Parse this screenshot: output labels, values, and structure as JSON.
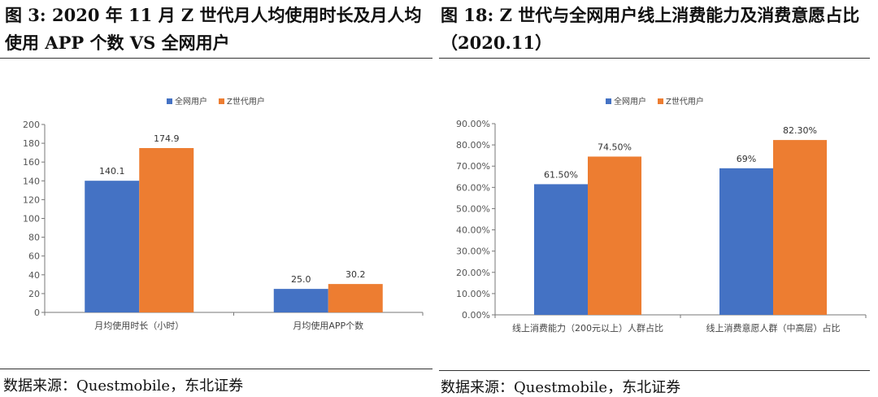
{
  "left": {
    "title": "图 3: 2020 年 11 月 Z 世代月人均使用时长及月人均使用 APP 个数 VS 全网用户",
    "source": "数据来源：Questmobile，东北证券"
  },
  "right": {
    "title": "图 18: Z 世代与全网用户线上消费能力及消费意愿占比（2020.11）",
    "source": "数据来源：Questmobile，东北证券"
  },
  "chart_data": [
    {
      "type": "bar",
      "title": "",
      "categories": [
        "月均使用时长（小时）",
        "月均使用APP个数"
      ],
      "series": [
        {
          "name": "全网用户",
          "values": [
            140.1,
            25.0
          ],
          "labels": [
            "140.1",
            "25.0"
          ],
          "color": "#4472C4"
        },
        {
          "name": "Z世代用户",
          "values": [
            174.9,
            30.2
          ],
          "labels": [
            "174.9",
            "30.2"
          ],
          "color": "#ED7D31"
        }
      ],
      "ylim": [
        0,
        200
      ],
      "yticks": [
        "0",
        "20",
        "40",
        "60",
        "80",
        "100",
        "120",
        "140",
        "160",
        "180",
        "200"
      ],
      "grid": false,
      "legend": "top-center"
    },
    {
      "type": "bar",
      "title": "",
      "categories": [
        "线上消费能力（200元以上）人群占比",
        "线上消费意愿人群（中高层）占比"
      ],
      "series": [
        {
          "name": "全网用户",
          "values": [
            61.5,
            69.0
          ],
          "labels": [
            "61.50%",
            "69%"
          ],
          "color": "#4472C4"
        },
        {
          "name": "Z世代用户",
          "values": [
            74.5,
            82.3
          ],
          "labels": [
            "74.50%",
            "82.30%"
          ],
          "color": "#ED7D31"
        }
      ],
      "ylim": [
        0,
        90
      ],
      "yticks": [
        "0.00%",
        "10.00%",
        "20.00%",
        "30.00%",
        "40.00%",
        "50.00%",
        "60.00%",
        "70.00%",
        "80.00%",
        "90.00%"
      ],
      "grid": false,
      "legend": "top-center"
    }
  ]
}
